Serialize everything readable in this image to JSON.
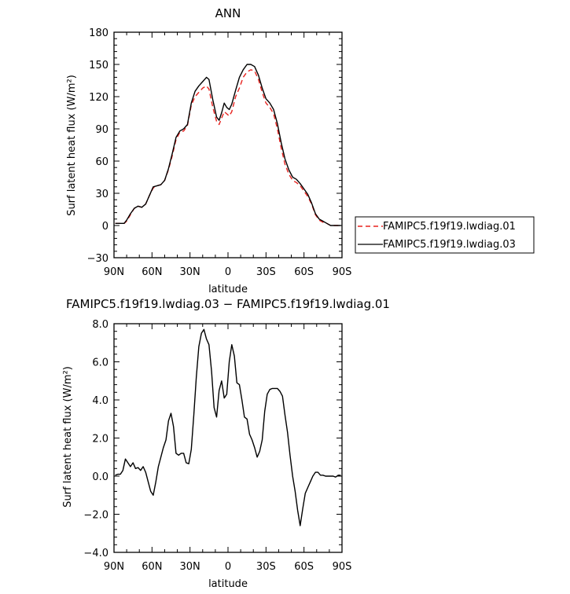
{
  "chart_data": [
    {
      "type": "line",
      "title": "ANN",
      "xlabel": "latitude",
      "ylabel": "Surf latent heat flux (W/m²)",
      "ylim": [
        -30,
        180
      ],
      "xlim": [
        90,
        -90
      ],
      "x_ticks": [
        90,
        60,
        30,
        0,
        -30,
        -60,
        -90
      ],
      "x_tick_labels": [
        "90N",
        "60N",
        "30N",
        "0",
        "30S",
        "60S",
        "90S"
      ],
      "y_ticks": [
        -30,
        0,
        30,
        60,
        90,
        120,
        150,
        180
      ],
      "y_tick_labels": [
        "−30",
        "0",
        "30",
        "60",
        "90",
        "120",
        "150",
        "180"
      ],
      "legend_position": "right",
      "series": [
        {
          "name": "FAMIPC5.f19f19.lwdiag.01",
          "color": "#e8231f",
          "dash": "dashed",
          "points": [
            [
              89,
              2
            ],
            [
              85,
              2
            ],
            [
              82,
              2
            ],
            [
              80,
              4
            ],
            [
              77,
              10
            ],
            [
              74,
              16
            ],
            [
              71,
              18
            ],
            [
              68,
              17
            ],
            [
              65,
              20
            ],
            [
              62,
              28
            ],
            [
              59,
              35
            ],
            [
              56,
              37
            ],
            [
              53,
              38
            ],
            [
              50,
              42
            ],
            [
              47,
              52
            ],
            [
              44,
              65
            ],
            [
              41,
              80
            ],
            [
              38,
              87
            ],
            [
              35,
              88
            ],
            [
              32,
              93
            ],
            [
              29,
              112
            ],
            [
              26,
              120
            ],
            [
              23,
              124
            ],
            [
              20,
              128
            ],
            [
              17,
              130
            ],
            [
              15,
              127
            ],
            [
              12,
              110
            ],
            [
              9,
              97
            ],
            [
              7,
              94
            ],
            [
              5,
              100
            ],
            [
              3,
              106
            ],
            [
              1,
              104
            ],
            [
              -1,
              102
            ],
            [
              -3,
              106
            ],
            [
              -6,
              120
            ],
            [
              -9,
              128
            ],
            [
              -12,
              138
            ],
            [
              -15,
              143
            ],
            [
              -18,
              145
            ],
            [
              -21,
              144
            ],
            [
              -24,
              136
            ],
            [
              -27,
              124
            ],
            [
              -30,
              114
            ],
            [
              -33,
              110
            ],
            [
              -36,
              104
            ],
            [
              -39,
              90
            ],
            [
              -42,
              72
            ],
            [
              -45,
              57
            ],
            [
              -48,
              48
            ],
            [
              -51,
              42
            ],
            [
              -54,
              40
            ],
            [
              -57,
              37
            ],
            [
              -60,
              32
            ],
            [
              -63,
              27
            ],
            [
              -66,
              20
            ],
            [
              -69,
              10
            ],
            [
              -72,
              5
            ],
            [
              -75,
              3
            ],
            [
              -78,
              2
            ],
            [
              -81,
              0
            ],
            [
              -84,
              0
            ],
            [
              -87,
              0
            ],
            [
              -89,
              0
            ]
          ]
        },
        {
          "name": "FAMIPC5.f19f19.lwdiag.03",
          "color": "#000000",
          "dash": "solid",
          "points": [
            [
              89,
              2
            ],
            [
              85,
              2
            ],
            [
              82,
              2
            ],
            [
              80,
              5
            ],
            [
              77,
              11
            ],
            [
              74,
              16
            ],
            [
              71,
              18
            ],
            [
              68,
              17
            ],
            [
              65,
              20
            ],
            [
              62,
              28
            ],
            [
              59,
              36
            ],
            [
              56,
              37
            ],
            [
              53,
              38
            ],
            [
              50,
              42
            ],
            [
              47,
              53
            ],
            [
              44,
              67
            ],
            [
              41,
              82
            ],
            [
              38,
              88
            ],
            [
              35,
              90
            ],
            [
              32,
              94
            ],
            [
              29,
              114
            ],
            [
              26,
              125
            ],
            [
              23,
              130
            ],
            [
              20,
              134
            ],
            [
              17,
              138
            ],
            [
              15,
              136
            ],
            [
              12,
              117
            ],
            [
              9,
              101
            ],
            [
              7,
              98
            ],
            [
              5,
              105
            ],
            [
              3,
              114
            ],
            [
              1,
              110
            ],
            [
              -1,
              108
            ],
            [
              -3,
              113
            ],
            [
              -6,
              126
            ],
            [
              -9,
              138
            ],
            [
              -12,
              145
            ],
            [
              -15,
              150
            ],
            [
              -18,
              150
            ],
            [
              -21,
              148
            ],
            [
              -24,
              140
            ],
            [
              -27,
              128
            ],
            [
              -30,
              118
            ],
            [
              -33,
              114
            ],
            [
              -36,
              108
            ],
            [
              -39,
              95
            ],
            [
              -42,
              77
            ],
            [
              -45,
              62
            ],
            [
              -48,
              52
            ],
            [
              -51,
              45
            ],
            [
              -54,
              43
            ],
            [
              -57,
              39
            ],
            [
              -60,
              34
            ],
            [
              -63,
              29
            ],
            [
              -66,
              21
            ],
            [
              -69,
              11
            ],
            [
              -72,
              6
            ],
            [
              -75,
              4
            ],
            [
              -78,
              2
            ],
            [
              -81,
              0
            ],
            [
              -84,
              0
            ],
            [
              -87,
              0
            ],
            [
              -89,
              0
            ]
          ]
        }
      ]
    },
    {
      "type": "line",
      "title": "FAMIPC5.f19f19.lwdiag.03 − FAMIPC5.f19f19.lwdiag.01",
      "xlabel": "latitude",
      "ylabel": "Surf latent heat flux (W/m²)",
      "ylim": [
        -4,
        8
      ],
      "xlim": [
        90,
        -90
      ],
      "x_ticks": [
        90,
        60,
        30,
        0,
        -30,
        -60,
        -90
      ],
      "x_tick_labels": [
        "90N",
        "60N",
        "30N",
        "0",
        "30S",
        "60S",
        "90S"
      ],
      "y_ticks": [
        -4,
        -2,
        0,
        2,
        4,
        6,
        8
      ],
      "y_tick_labels": [
        "−4.0",
        "−2.0",
        "0.0",
        "2.0",
        "4.0",
        "6.0",
        "8.0"
      ],
      "series": [
        {
          "color": "#000000",
          "dash": "solid",
          "points": [
            [
              89,
              0.05
            ],
            [
              87,
              0.1
            ],
            [
              85,
              0.1
            ],
            [
              83,
              0.3
            ],
            [
              81,
              0.9
            ],
            [
              79,
              0.7
            ],
            [
              77,
              0.5
            ],
            [
              75,
              0.7
            ],
            [
              73,
              0.4
            ],
            [
              71,
              0.45
            ],
            [
              69,
              0.3
            ],
            [
              67,
              0.5
            ],
            [
              65,
              0.2
            ],
            [
              63,
              -0.3
            ],
            [
              61,
              -0.8
            ],
            [
              59,
              -1.0
            ],
            [
              57,
              -0.3
            ],
            [
              55,
              0.5
            ],
            [
              53,
              1.0
            ],
            [
              51,
              1.5
            ],
            [
              49,
              1.9
            ],
            [
              47,
              2.9
            ],
            [
              45,
              3.3
            ],
            [
              43,
              2.6
            ],
            [
              41,
              1.2
            ],
            [
              39,
              1.1
            ],
            [
              37,
              1.2
            ],
            [
              35,
              1.2
            ],
            [
              33,
              0.7
            ],
            [
              31,
              0.65
            ],
            [
              29,
              1.4
            ],
            [
              27,
              3.2
            ],
            [
              25,
              5.2
            ],
            [
              23,
              6.8
            ],
            [
              21,
              7.5
            ],
            [
              19,
              7.7
            ],
            [
              17,
              7.2
            ],
            [
              15,
              6.9
            ],
            [
              13,
              5.5
            ],
            [
              11,
              3.6
            ],
            [
              9,
              3.1
            ],
            [
              7,
              4.5
            ],
            [
              5,
              5.0
            ],
            [
              3,
              4.1
            ],
            [
              1,
              4.3
            ],
            [
              -1,
              6.0
            ],
            [
              -3,
              6.9
            ],
            [
              -5,
              6.3
            ],
            [
              -7,
              4.9
            ],
            [
              -9,
              4.8
            ],
            [
              -11,
              4.0
            ],
            [
              -13,
              3.1
            ],
            [
              -15,
              3.0
            ],
            [
              -17,
              2.2
            ],
            [
              -19,
              1.9
            ],
            [
              -21,
              1.5
            ],
            [
              -23,
              1.0
            ],
            [
              -25,
              1.3
            ],
            [
              -27,
              1.9
            ],
            [
              -29,
              3.4
            ],
            [
              -31,
              4.3
            ],
            [
              -33,
              4.55
            ],
            [
              -35,
              4.6
            ],
            [
              -37,
              4.6
            ],
            [
              -39,
              4.6
            ],
            [
              -41,
              4.45
            ],
            [
              -43,
              4.2
            ],
            [
              -45,
              3.2
            ],
            [
              -47,
              2.3
            ],
            [
              -49,
              1.1
            ],
            [
              -51,
              0.0
            ],
            [
              -53,
              -0.8
            ],
            [
              -55,
              -1.8
            ],
            [
              -57,
              -2.6
            ],
            [
              -59,
              -1.7
            ],
            [
              -61,
              -0.9
            ],
            [
              -63,
              -0.6
            ],
            [
              -65,
              -0.3
            ],
            [
              -67,
              0.0
            ],
            [
              -69,
              0.2
            ],
            [
              -71,
              0.2
            ],
            [
              -73,
              0.05
            ],
            [
              -75,
              0.05
            ],
            [
              -77,
              0.0
            ],
            [
              -79,
              0.0
            ],
            [
              -81,
              0.0
            ],
            [
              -83,
              0.0
            ],
            [
              -85,
              -0.05
            ],
            [
              -87,
              0.05
            ],
            [
              -89,
              0.05
            ]
          ]
        }
      ]
    }
  ]
}
